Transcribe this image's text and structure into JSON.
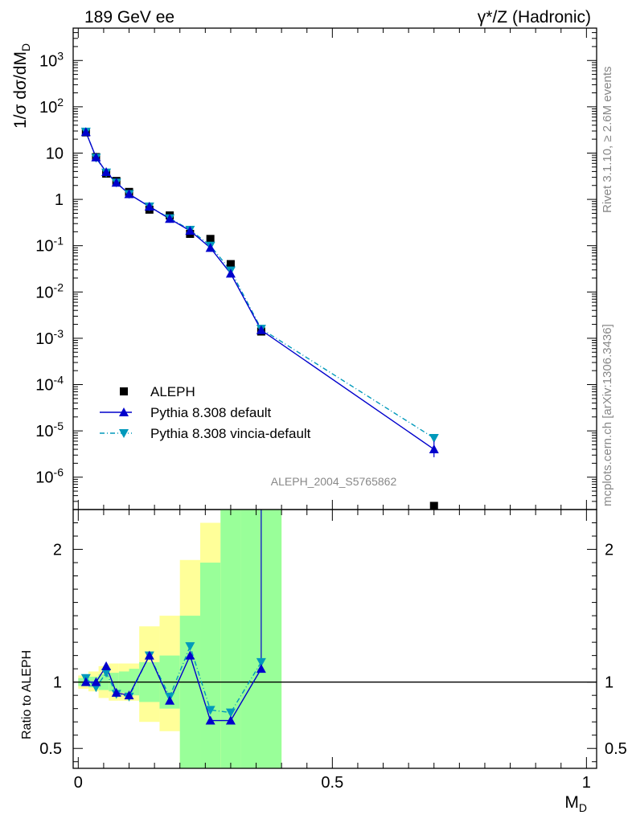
{
  "header": {
    "left_title": "189 GeV ee",
    "right_title": "γ*/Z (Hadronic)"
  },
  "side_labels": {
    "rivet": "Rivet 3.1.10, ≥ 2.6M events",
    "mcplots": "mcplots.cern.ch [arXiv:1306.3436]"
  },
  "analysis_id": "ALEPH_2004_S5765862",
  "colors": {
    "data": "#000000",
    "pythia_default": "#0000cc",
    "vincia_default": "#0099bb",
    "band_inner": "#99ff99",
    "band_outer": "#ffff99"
  },
  "chart_data": [
    {
      "type": "scatter",
      "panel": "main",
      "ylabel": "1/σ  dσ/dM_D",
      "y_scale": "log",
      "xlim": [
        -0.01,
        1.02
      ],
      "ylim": [
        2e-07,
        5000
      ],
      "y_ticks": [
        {
          "value": 1e-06,
          "label": "10^-6"
        },
        {
          "value": 1e-05,
          "label": "10^-5"
        },
        {
          "value": 0.0001,
          "label": "10^-4"
        },
        {
          "value": 0.001,
          "label": "10^-3"
        },
        {
          "value": 0.01,
          "label": "10^-2"
        },
        {
          "value": 0.1,
          "label": "10^-1"
        },
        {
          "value": 1,
          "label": "1"
        },
        {
          "value": 10,
          "label": "10"
        },
        {
          "value": 100,
          "label": "10^2"
        },
        {
          "value": 1000,
          "label": "10^3"
        }
      ],
      "legend_position": "bottom-left",
      "series": [
        {
          "name": "ALEPH",
          "style": "square",
          "x": [
            0.015,
            0.035,
            0.055,
            0.075,
            0.1,
            0.14,
            0.18,
            0.22,
            0.26,
            0.3,
            0.36,
            0.7
          ],
          "y": [
            28,
            8.2,
            3.6,
            2.5,
            1.45,
            0.6,
            0.45,
            0.18,
            0.14,
            0.04,
            0.0014,
            2.4e-07
          ]
        },
        {
          "name": "Pythia 8.308 default",
          "style": "triangle-up-solid",
          "x": [
            0.015,
            0.035,
            0.055,
            0.075,
            0.1,
            0.14,
            0.18,
            0.22,
            0.26,
            0.3,
            0.36,
            0.7
          ],
          "y": [
            28.5,
            8.1,
            3.9,
            2.3,
            1.3,
            0.7,
            0.38,
            0.21,
            0.09,
            0.025,
            0.0015,
            4e-06
          ]
        },
        {
          "name": "Pythia 8.308 vincia-default",
          "style": "triangle-down-dashdot",
          "x": [
            0.015,
            0.035,
            0.055,
            0.075,
            0.1,
            0.14,
            0.18,
            0.22,
            0.26,
            0.3,
            0.36,
            0.7
          ],
          "y": [
            29,
            7.9,
            3.8,
            2.3,
            1.3,
            0.7,
            0.39,
            0.22,
            0.1,
            0.029,
            0.0016,
            7e-06
          ]
        }
      ]
    },
    {
      "type": "line",
      "panel": "ratio",
      "xlabel": "M_D",
      "ylabel": "Ratio to ALEPH",
      "xlim": [
        -0.01,
        1.02
      ],
      "ylim": [
        0.35,
        2.3
      ],
      "x_ticks": [
        {
          "value": 0,
          "label": "0"
        },
        {
          "value": 0.5,
          "label": "0.5"
        },
        {
          "value": 1,
          "label": "1"
        }
      ],
      "y_ticks": [
        {
          "value": 0.5,
          "label": "0.5"
        },
        {
          "value": 1,
          "label": "1"
        },
        {
          "value": 2,
          "label": "2"
        }
      ],
      "reference_line": 1,
      "uncertainty_bands": {
        "x_edges": [
          0.0,
          0.02,
          0.04,
          0.06,
          0.08,
          0.1,
          0.12,
          0.16,
          0.2,
          0.24,
          0.28,
          0.32,
          0.4
        ],
        "inner": [
          [
            0.97,
            1.03
          ],
          [
            0.96,
            1.04
          ],
          [
            0.94,
            1.06
          ],
          [
            0.93,
            1.07
          ],
          [
            0.92,
            1.08
          ],
          [
            0.9,
            1.1
          ],
          [
            0.85,
            1.15
          ],
          [
            0.8,
            1.2
          ],
          [
            0.35,
            1.5
          ],
          [
            0.35,
            1.9
          ],
          [
            0.35,
            2.3
          ],
          [
            0.35,
            2.3
          ]
        ],
        "outer": [
          [
            0.95,
            1.05
          ],
          [
            0.93,
            1.08
          ],
          [
            0.88,
            1.12
          ],
          [
            0.86,
            1.14
          ],
          [
            0.86,
            1.14
          ],
          [
            0.86,
            1.14
          ],
          [
            0.7,
            1.42
          ],
          [
            0.63,
            1.5
          ],
          [
            0.35,
            1.92
          ],
          [
            0.35,
            2.2
          ],
          [
            0.35,
            2.3
          ],
          [
            0.35,
            2.3
          ]
        ]
      },
      "series": [
        {
          "name": "Pythia 8.308 default",
          "x": [
            0.015,
            0.035,
            0.055,
            0.075,
            0.1,
            0.14,
            0.18,
            0.22,
            0.26,
            0.3,
            0.36
          ],
          "y": [
            1.0,
            1.0,
            1.12,
            0.92,
            0.9,
            1.2,
            0.86,
            1.2,
            0.71,
            0.71,
            1.1
          ]
        },
        {
          "name": "Pythia 8.308 vincia-default",
          "x": [
            0.015,
            0.035,
            0.055,
            0.075,
            0.1,
            0.14,
            0.18,
            0.22,
            0.26,
            0.3,
            0.36
          ],
          "y": [
            1.03,
            0.96,
            1.07,
            0.91,
            0.89,
            1.2,
            0.89,
            1.27,
            0.79,
            0.77,
            1.15
          ]
        }
      ]
    }
  ]
}
